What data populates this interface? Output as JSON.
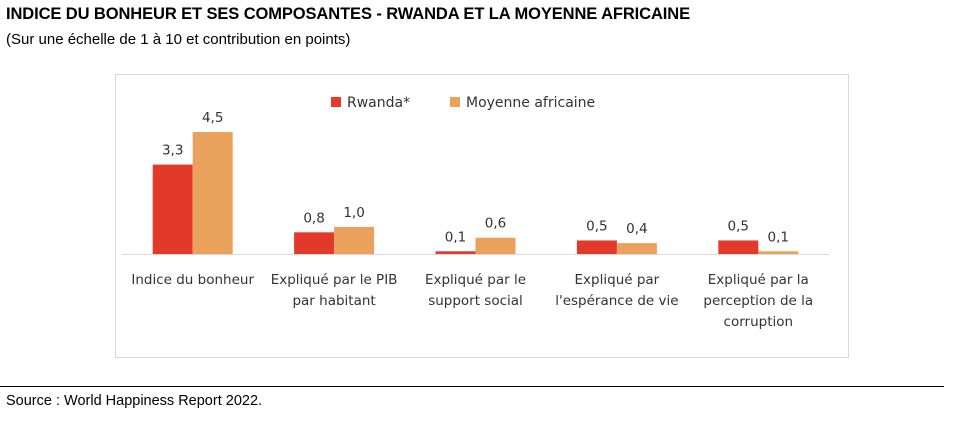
{
  "header": {
    "title": "INDICE DU BONHEUR ET SES COMPOSANTES - RWANDA ET LA MOYENNE AFRICAINE",
    "subtitle": "(Sur une échelle de 1 à 10 et contribution en points)"
  },
  "footer": {
    "source": "Source : World Happiness Report 2022."
  },
  "colors": {
    "rwanda": "#e3392b",
    "africa": "#e9a15c",
    "axis": "#d9d9d9"
  },
  "chart_data": {
    "type": "bar",
    "categories": [
      [
        "Indice du bonheur"
      ],
      [
        "Expliqué par le PIB",
        "par habitant"
      ],
      [
        "Expliqué par le",
        "support social"
      ],
      [
        "Expliqué par",
        "l'espérance de vie"
      ],
      [
        "Expliqué par la",
        "perception de la",
        "corruption"
      ]
    ],
    "series": [
      {
        "name": "Rwanda*",
        "values": [
          3.3,
          0.8,
          0.1,
          0.5,
          0.5
        ],
        "labels": [
          "3,3",
          "0,8",
          "0,1",
          "0,5",
          "0,5"
        ]
      },
      {
        "name": "Moyenne africaine",
        "values": [
          4.5,
          1.0,
          0.6,
          0.4,
          0.1
        ],
        "labels": [
          "4,5",
          "1,0",
          "0,6",
          "0,4",
          "0,1"
        ]
      }
    ],
    "ylim": [
      0,
      5
    ],
    "grid": false,
    "legend": "top-center"
  }
}
